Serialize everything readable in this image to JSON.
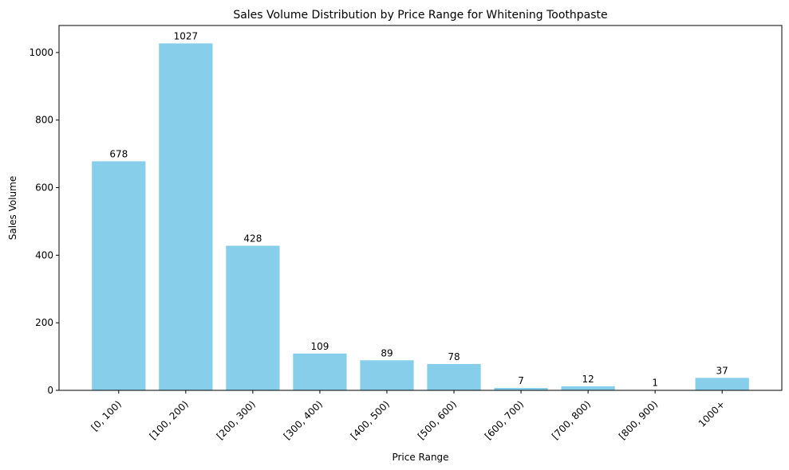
{
  "chart_data": {
    "type": "bar",
    "title": "Sales Volume Distribution by Price Range for Whitening Toothpaste",
    "xlabel": "Price Range",
    "ylabel": "Sales Volume",
    "categories": [
      "[0, 100)",
      "[100, 200)",
      "[200, 300)",
      "[300, 400)",
      "[400, 500)",
      "[500, 600)",
      "[600, 700)",
      "[700, 800)",
      "[800, 900)",
      "1000+"
    ],
    "values": [
      678,
      1027,
      428,
      109,
      89,
      78,
      7,
      12,
      1,
      37
    ],
    "yticks": [
      0,
      200,
      400,
      600,
      800,
      1000
    ],
    "ylim": [
      0,
      1080
    ],
    "bar_color": "#87CEEB",
    "grid": false
  }
}
